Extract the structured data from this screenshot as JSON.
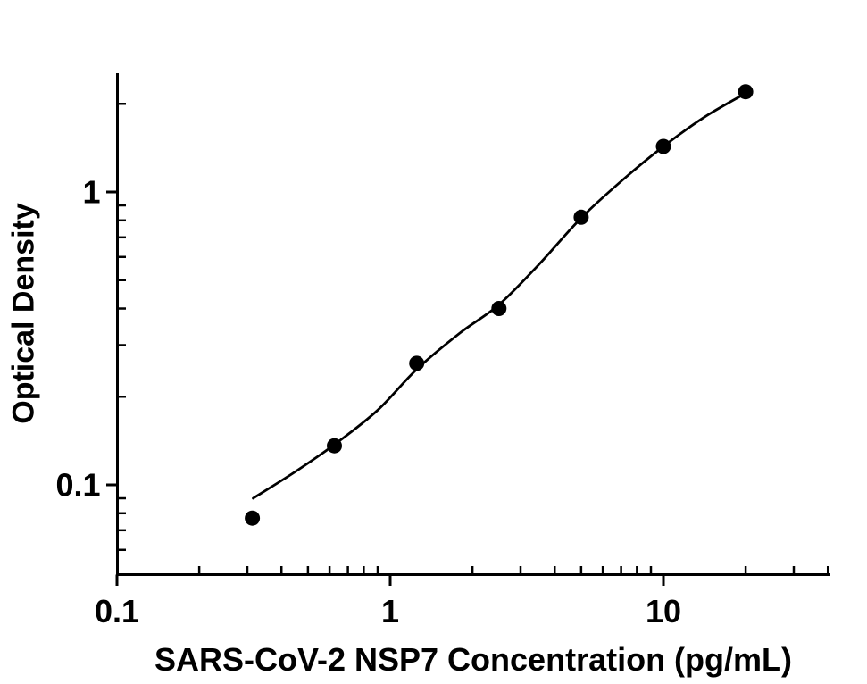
{
  "figure": {
    "background_color": "#ffffff",
    "axis_color": "#000000",
    "marker_color": "#000000",
    "curve_color": "#000000"
  },
  "chart_data": {
    "type": "scatter",
    "title": "",
    "xlabel": "SARS-CoV-2 NSP7 Concentration (pg/mL)",
    "ylabel": "Optical Density",
    "x_scale": "log",
    "y_scale": "log",
    "xlim": [
      0.1,
      40
    ],
    "ylim": [
      0.05,
      2.55
    ],
    "grid": false,
    "legend": null,
    "x_major_ticks": [
      {
        "value": 0.1,
        "label": "0.1"
      },
      {
        "value": 1,
        "label": "1"
      },
      {
        "value": 10,
        "label": "10"
      }
    ],
    "y_major_ticks": [
      {
        "value": 0.1,
        "label": "0.1"
      },
      {
        "value": 1,
        "label": "1"
      }
    ],
    "x_minor_ticks": [
      0.2,
      0.3,
      0.4,
      0.5,
      0.6,
      0.7,
      0.8,
      0.9,
      2,
      3,
      4,
      5,
      6,
      7,
      8,
      9,
      20,
      30,
      40
    ],
    "y_minor_ticks": [
      0.06,
      0.07,
      0.08,
      0.09,
      0.2,
      0.3,
      0.4,
      0.5,
      0.6,
      0.7,
      0.8,
      0.9,
      2
    ],
    "series": [
      {
        "name": "standard-data-points",
        "type": "scatter",
        "marker": "filled-circle",
        "color": "#000000",
        "points": [
          {
            "x": 0.313,
            "y": 0.077
          },
          {
            "x": 0.625,
            "y": 0.136
          },
          {
            "x": 1.25,
            "y": 0.26
          },
          {
            "x": 2.5,
            "y": 0.4
          },
          {
            "x": 5,
            "y": 0.82
          },
          {
            "x": 10,
            "y": 1.43
          },
          {
            "x": 20,
            "y": 2.2
          }
        ]
      },
      {
        "name": "fitted-standard-curve",
        "type": "line",
        "color": "#000000",
        "points": [
          {
            "x": 0.315,
            "y": 0.09
          },
          {
            "x": 0.45,
            "y": 0.111
          },
          {
            "x": 0.63,
            "y": 0.138
          },
          {
            "x": 0.9,
            "y": 0.18
          },
          {
            "x": 1.25,
            "y": 0.248
          },
          {
            "x": 1.8,
            "y": 0.33
          },
          {
            "x": 2.5,
            "y": 0.412
          },
          {
            "x": 3.5,
            "y": 0.565
          },
          {
            "x": 5.0,
            "y": 0.815
          },
          {
            "x": 7.1,
            "y": 1.1
          },
          {
            "x": 10,
            "y": 1.43
          },
          {
            "x": 14.1,
            "y": 1.8
          },
          {
            "x": 20.3,
            "y": 2.19
          }
        ]
      }
    ]
  }
}
